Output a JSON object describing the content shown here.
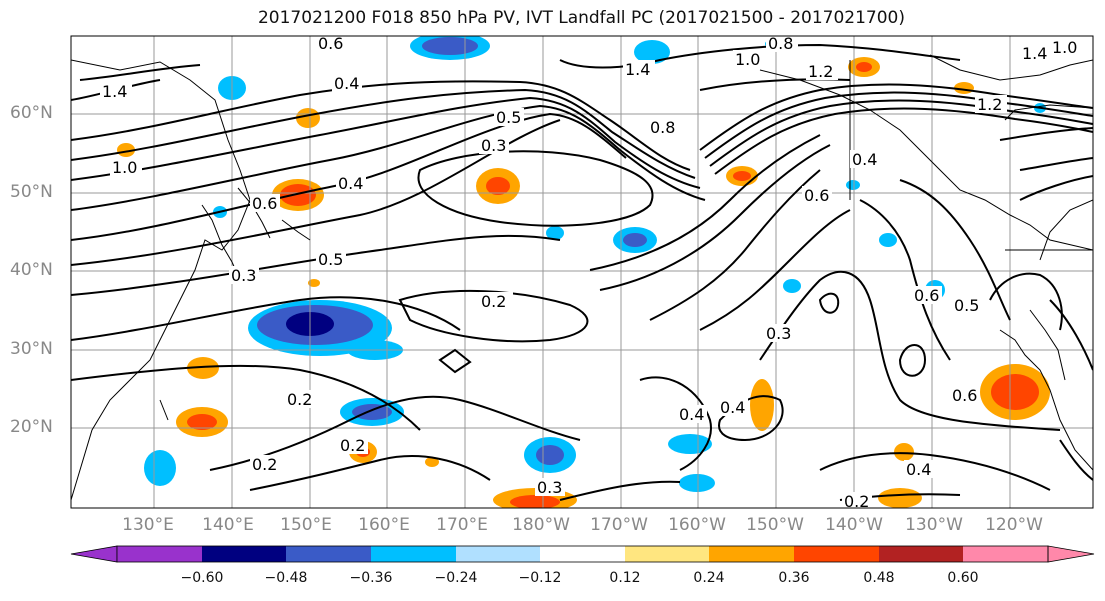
{
  "title": "2017021200 F018 850 hPa PV, IVT Landfall PC (2017021500 - 2017021700)",
  "lat_labels": [
    "60°N",
    "50°N",
    "40°N",
    "30°N",
    "20°N"
  ],
  "lat_values": [
    60,
    50,
    40,
    30,
    20
  ],
  "lon_labels": [
    "130°E",
    "140°E",
    "150°E",
    "160°E",
    "170°E",
    "180°W",
    "170°W",
    "160°W",
    "150°W",
    "140°W",
    "130°W",
    "120°W"
  ],
  "lon_values": [
    130,
    140,
    150,
    160,
    170,
    180,
    190,
    200,
    210,
    220,
    230,
    240
  ],
  "colorbar": {
    "ticks": [
      "−0.60",
      "−0.48",
      "−0.36",
      "−0.24",
      "−0.12",
      "0.12",
      "0.24",
      "0.36",
      "0.48",
      "0.60"
    ],
    "colors": [
      "#9932cc",
      "#000080",
      "#3a5bc7",
      "#00bfff",
      "#b0e0ff",
      "#ffffff",
      "#ffe680",
      "#ffa500",
      "#ff4500",
      "#b22222",
      "#ff88aa",
      "#ff88aa"
    ]
  },
  "contour_labels": [
    "0.6",
    "0.4",
    "1.4",
    "1.2",
    "1.0",
    "0.8",
    "0.5",
    "0.3",
    "0.2",
    "0.6",
    "0.4",
    "0.3",
    "0.5",
    "0.2",
    "0.2",
    "0.2",
    "0.3",
    "0.4",
    "0.4",
    "0.3",
    "0.6",
    "0.5",
    "0.6",
    "0.4",
    "0.2",
    "1.0",
    "1.4",
    "1.4",
    "1.2",
    "0.8",
    "0.4",
    "0.6",
    "1.0"
  ]
}
